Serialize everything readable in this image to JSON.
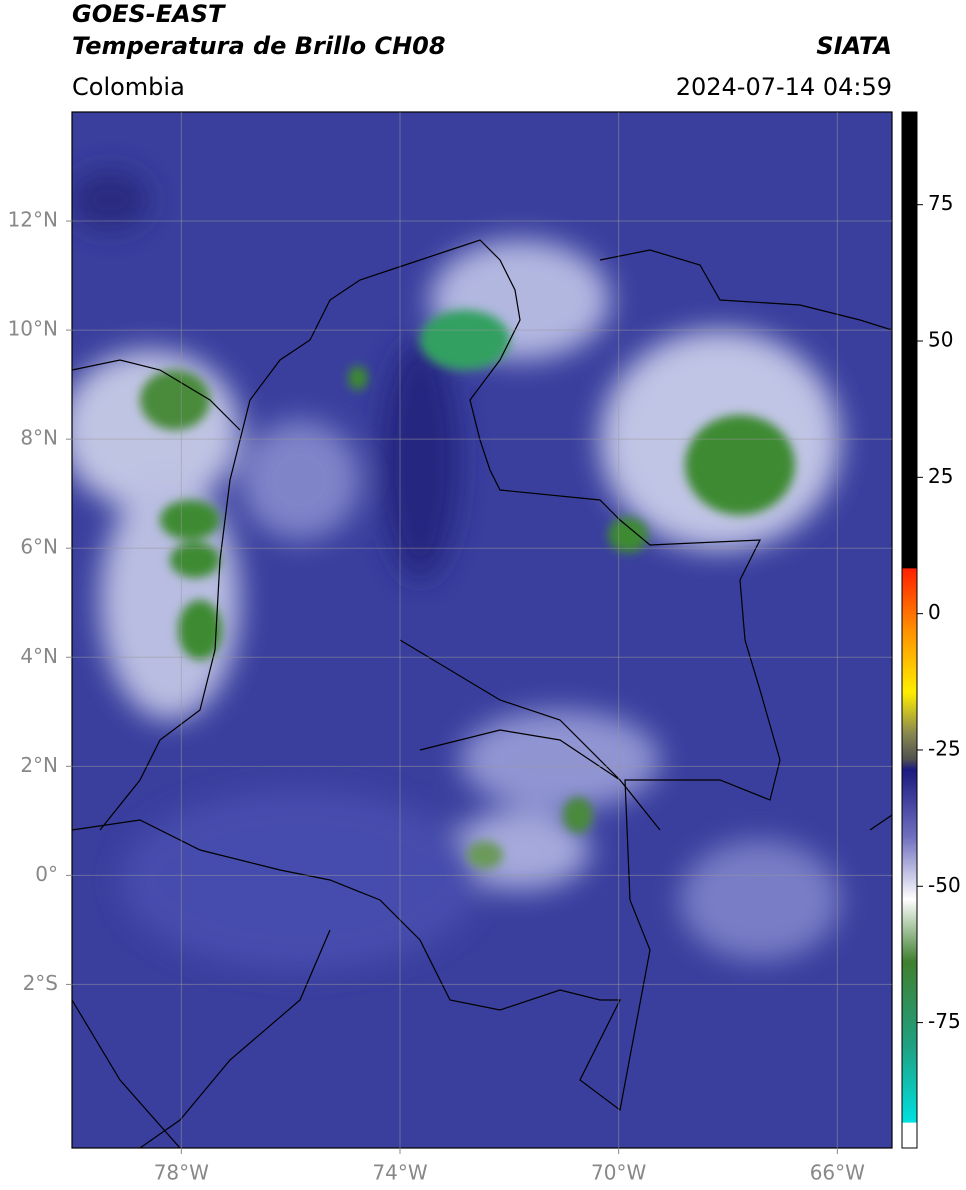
{
  "header": {
    "title": "GOES-EAST",
    "subtitle": "Temperatura de Brillo CH08",
    "source": "SIATA",
    "region": "Colombia",
    "timestamp": "2024-07-14 04:59"
  },
  "map": {
    "lon_lim": [
      -80,
      -65
    ],
    "lat_lim": [
      -5,
      14
    ],
    "grid": true,
    "lon_ticks": [
      {
        "value": -78,
        "label": "78°W"
      },
      {
        "value": -74,
        "label": "74°W"
      },
      {
        "value": -70,
        "label": "70°W"
      },
      {
        "value": -66,
        "label": "66°W"
      }
    ],
    "lat_ticks": [
      {
        "value": 12,
        "label": "12°N"
      },
      {
        "value": 10,
        "label": "10°N"
      },
      {
        "value": 8,
        "label": "8°N"
      },
      {
        "value": 6,
        "label": "6°N"
      },
      {
        "value": 4,
        "label": "4°N"
      },
      {
        "value": 2,
        "label": "2°N"
      },
      {
        "value": 0,
        "label": "0°"
      },
      {
        "value": -2,
        "label": "2°S"
      }
    ]
  },
  "colorbar": {
    "lim": [
      -98,
      92
    ],
    "ticks": [
      75,
      50,
      25,
      0,
      -25,
      -50,
      -75
    ]
  }
}
